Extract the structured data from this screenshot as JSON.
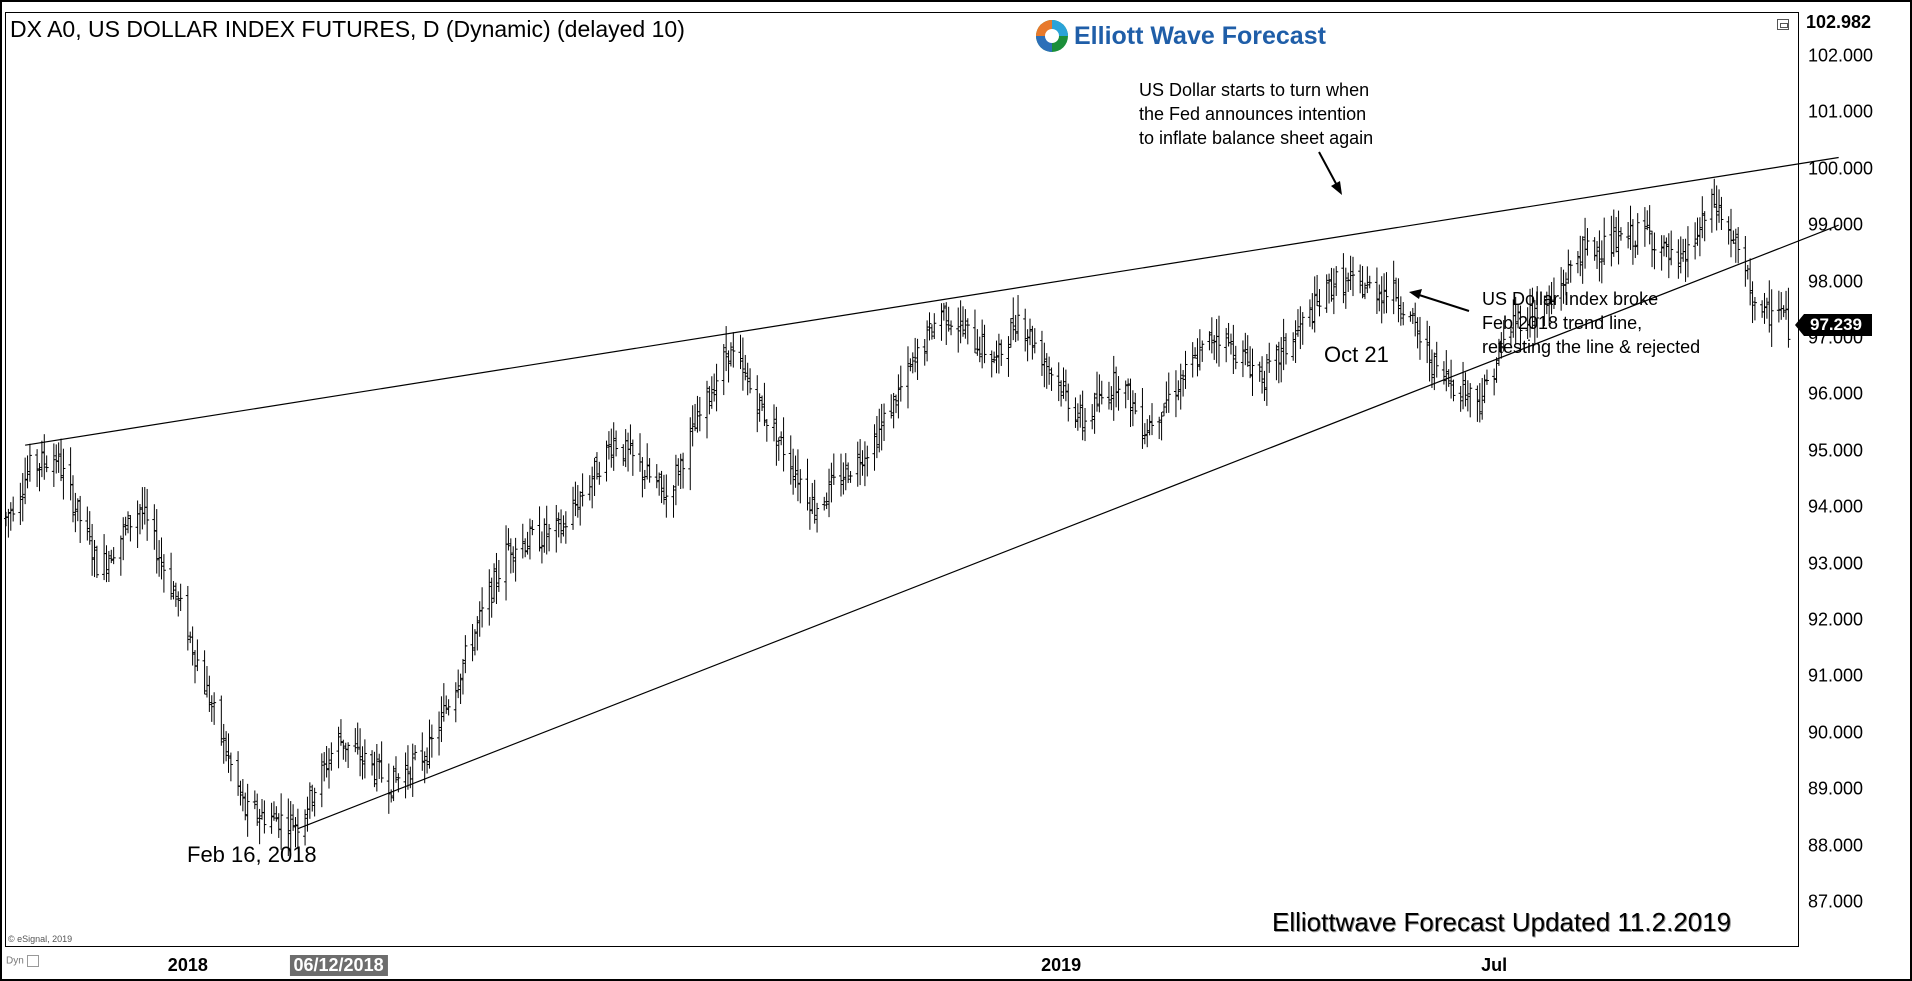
{
  "header": {
    "title": "DX A0, US DOLLAR INDEX FUTURES, D (Dynamic) (delayed 10)",
    "logo_text": "Elliott Wave Forecast"
  },
  "annotations": {
    "fed_note": "US Dollar starts to turn when\nthe Fed announces intention\nto inflate balance sheet again",
    "break_note": "US Dollar Index broke\nFeb 2018 trend line,\nretesting the line & rejected",
    "low_label": "Feb 16, 2018",
    "oct_label": "Oct 21",
    "footer": "Elliottwave Forecast Updated 11.2.2019"
  },
  "meta": {
    "copyright": "© eSignal, 2019",
    "dyn": "Dyn"
  },
  "colors": {
    "bars": "#000000",
    "background": "#ffffff",
    "logo_blue": "#1f5ea8",
    "price_tag": "#000000",
    "date_highlight": "#6d6d6d"
  },
  "icons": [
    "restore-window-icon",
    "elliott-wave-logo-icon",
    "annotation-arrow-icon"
  ],
  "chart_data": {
    "type": "ohlc",
    "title": "DX A0, US DOLLAR INDEX FUTURES, D (Dynamic) (delayed 10)",
    "ylim": [
      86.3,
      103.2
    ],
    "y_ticks": [
      "87.000",
      "88.000",
      "89.000",
      "90.000",
      "91.000",
      "92.000",
      "93.000",
      "94.000",
      "95.000",
      "96.000",
      "97.000",
      "98.000",
      "99.000",
      "100.000",
      "101.000",
      "102.000"
    ],
    "y_top_label": "102.982",
    "last_price": "97.239",
    "last_price_value": 97.239,
    "x_ticks": [
      {
        "label": "2018",
        "date": "2018-01-01",
        "highlight": false
      },
      {
        "label": "06/12/2018",
        "date": "2018-03-05",
        "highlight": true
      },
      {
        "label": "2019",
        "date": "2019-01-01",
        "highlight": false
      },
      {
        "label": "Jul",
        "date": "2019-07-01",
        "highlight": false
      }
    ],
    "x_range": [
      "2017-10-17",
      "2019-11-05"
    ],
    "grid": false,
    "price_path": [
      [
        "2017-10-17",
        93.8
      ],
      [
        "2017-10-27",
        94.7
      ],
      [
        "2017-11-07",
        94.9
      ],
      [
        "2017-11-25",
        92.9
      ],
      [
        "2017-12-12",
        94.0
      ],
      [
        "2017-12-29",
        92.2
      ],
      [
        "2018-01-25",
        88.6
      ],
      [
        "2018-02-16",
        88.4
      ],
      [
        "2018-03-05",
        89.9
      ],
      [
        "2018-03-27",
        89.1
      ],
      [
        "2018-04-12",
        89.7
      ],
      [
        "2018-05-15",
        93.3
      ],
      [
        "2018-06-06",
        93.6
      ],
      [
        "2018-06-28",
        95.2
      ],
      [
        "2018-07-20",
        94.2
      ],
      [
        "2018-08-15",
        96.8
      ],
      [
        "2018-09-05",
        95.2
      ],
      [
        "2018-09-20",
        94.0
      ],
      [
        "2018-10-15",
        95.2
      ],
      [
        "2018-11-12",
        97.5
      ],
      [
        "2018-12-05",
        96.6
      ],
      [
        "2018-12-14",
        97.4
      ],
      [
        "2019-01-10",
        95.5
      ],
      [
        "2019-01-25",
        96.3
      ],
      [
        "2019-02-05",
        95.4
      ],
      [
        "2019-03-07",
        97.1
      ],
      [
        "2019-03-27",
        96.3
      ],
      [
        "2019-04-25",
        98.0
      ],
      [
        "2019-05-21",
        97.8
      ],
      [
        "2019-06-07",
        96.4
      ],
      [
        "2019-06-25",
        95.9
      ],
      [
        "2019-07-09",
        97.3
      ],
      [
        "2019-07-25",
        97.6
      ],
      [
        "2019-08-05",
        98.5
      ],
      [
        "2019-08-22",
        98.7
      ],
      [
        "2019-09-03",
        98.9
      ],
      [
        "2019-09-16",
        98.2
      ],
      [
        "2019-10-01",
        99.4
      ],
      [
        "2019-10-10",
        98.6
      ],
      [
        "2019-10-21",
        97.3
      ],
      [
        "2019-10-28",
        97.6
      ],
      [
        "2019-11-01",
        97.2
      ]
    ],
    "trend_lines": [
      {
        "name": "upper",
        "from": [
          "2017-10-25",
          95.1
        ],
        "to": [
          "2019-11-22",
          100.2
        ]
      },
      {
        "name": "lower",
        "from": [
          "2018-02-16",
          88.3
        ],
        "to": [
          "2019-11-22",
          99.0
        ]
      }
    ]
  }
}
